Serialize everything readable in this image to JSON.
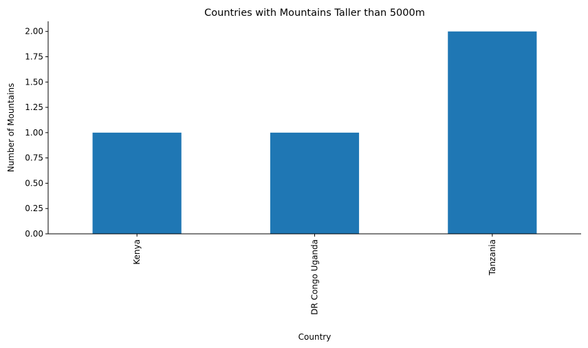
{
  "chart_data": {
    "type": "bar",
    "title": "Countries with Mountains Taller than 5000m",
    "xlabel": "Country",
    "ylabel": "Number of Mountains",
    "categories": [
      "Kenya",
      "DR Congo Uganda",
      "Tanzania"
    ],
    "values": [
      1,
      1,
      2
    ],
    "ylim": [
      0,
      2.1
    ],
    "yticks": [
      "0.00",
      "0.25",
      "0.50",
      "0.75",
      "1.00",
      "1.25",
      "1.50",
      "1.75",
      "2.00"
    ],
    "bar_color": "#1f77b4",
    "grid": false,
    "legend": "none"
  }
}
